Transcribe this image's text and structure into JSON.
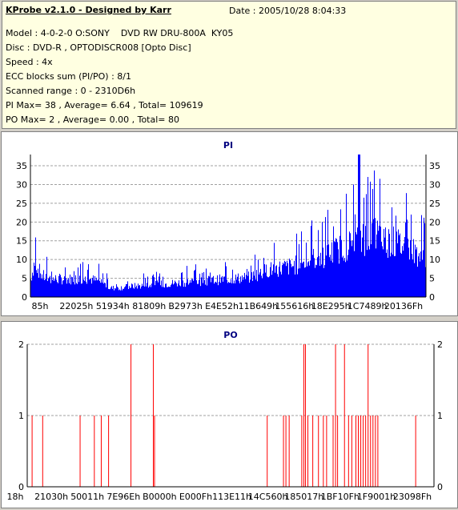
{
  "info": {
    "title": "KProbe v2.1.0 - Designed by Karr",
    "date": "Date : 2005/10/28 8:04:33",
    "model": "Model : 4-0-2-0 O:SONY    DVD RW DRU-800A  KY05",
    "disc": "Disc : DVD-R , OPTODISCR008 [Opto Disc]",
    "speed": "Speed : 4x",
    "ecc": "ECC blocks sum (PI/PO) : 8/1",
    "range": "Scanned range : 0 - 2310D6h",
    "pi_stats": "PI Max= 38 , Average= 6.64 , Total= 109619",
    "po_stats": "PO Max= 2 , Average= 0.00 , Total= 80"
  },
  "colors": {
    "pi_fill": "#0000ff",
    "po_line": "#ff0000",
    "title_text": "#000080",
    "grid": "#a0a0a0"
  },
  "chart_data": [
    {
      "type": "area",
      "title": "PI",
      "ylim": [
        0,
        38
      ],
      "yticks": [
        0,
        5,
        10,
        15,
        20,
        25,
        30,
        35
      ],
      "grid": "dashed horizontal at each tick",
      "x_tick_labels": [
        "85h",
        "22025h",
        "51934h",
        "81809h",
        "B2973h",
        "E4E52h",
        "11B649h",
        "155616h",
        "18E295h",
        "1C7489h",
        "20136Fh"
      ],
      "x_range": [
        "0h",
        "2310D6h"
      ],
      "series": [
        {
          "profile_x_percent": [
            0,
            1,
            2,
            3,
            5,
            10,
            15,
            18,
            20,
            22,
            25,
            30,
            35,
            40,
            45,
            50,
            55,
            58,
            60,
            62,
            65,
            68,
            70,
            72,
            75,
            78,
            80,
            83,
            85,
            87,
            90,
            92,
            95,
            97,
            100
          ],
          "profile_y": [
            6,
            12,
            9,
            7,
            6,
            6,
            6,
            5,
            3,
            3,
            3.5,
            4,
            4.5,
            5,
            5.5,
            6,
            6.5,
            8,
            9,
            9.5,
            10,
            11,
            12,
            13,
            14,
            16,
            17,
            19,
            20,
            21,
            19,
            18,
            17,
            15,
            13
          ],
          "peak_max_percent_x": 83,
          "peak_max": 38
        }
      ]
    },
    {
      "type": "bar",
      "title": "PO",
      "ylim": [
        0,
        2
      ],
      "yticks": [
        0,
        1,
        2
      ],
      "grid": "dashed horizontal at 1",
      "x_tick_labels": [
        "18h",
        "21030h",
        "50011h",
        "7E96Eh",
        "B0000h",
        "E000Fh",
        "113E11h",
        "14C560h",
        "185017h",
        "1BF10Fh",
        "1F9001h",
        "23098Fh"
      ],
      "x_range": [
        "0h",
        "2310D6h"
      ],
      "spikes": [
        {
          "x_percent": 1.2,
          "value": 1
        },
        {
          "x_percent": 3.8,
          "value": 1
        },
        {
          "x_percent": 13.0,
          "value": 1
        },
        {
          "x_percent": 16.5,
          "value": 1
        },
        {
          "x_percent": 18.2,
          "value": 1
        },
        {
          "x_percent": 20.0,
          "value": 1
        },
        {
          "x_percent": 25.5,
          "value": 2
        },
        {
          "x_percent": 31.0,
          "value": 2
        },
        {
          "x_percent": 31.3,
          "value": 1
        },
        {
          "x_percent": 59.0,
          "value": 1
        },
        {
          "x_percent": 63.0,
          "value": 1
        },
        {
          "x_percent": 63.6,
          "value": 1
        },
        {
          "x_percent": 64.4,
          "value": 1
        },
        {
          "x_percent": 67.5,
          "value": 1
        },
        {
          "x_percent": 68.0,
          "value": 2
        },
        {
          "x_percent": 68.4,
          "value": 2
        },
        {
          "x_percent": 69.0,
          "value": 1
        },
        {
          "x_percent": 70.2,
          "value": 1
        },
        {
          "x_percent": 71.6,
          "value": 1
        },
        {
          "x_percent": 72.8,
          "value": 1
        },
        {
          "x_percent": 73.6,
          "value": 1
        },
        {
          "x_percent": 75.2,
          "value": 1
        },
        {
          "x_percent": 75.8,
          "value": 2
        },
        {
          "x_percent": 76.3,
          "value": 1
        },
        {
          "x_percent": 78.0,
          "value": 2
        },
        {
          "x_percent": 79.0,
          "value": 1
        },
        {
          "x_percent": 79.8,
          "value": 1
        },
        {
          "x_percent": 80.8,
          "value": 1
        },
        {
          "x_percent": 81.4,
          "value": 1
        },
        {
          "x_percent": 82.0,
          "value": 1
        },
        {
          "x_percent": 82.6,
          "value": 1
        },
        {
          "x_percent": 83.2,
          "value": 1
        },
        {
          "x_percent": 83.8,
          "value": 2
        },
        {
          "x_percent": 84.4,
          "value": 1
        },
        {
          "x_percent": 85.0,
          "value": 1
        },
        {
          "x_percent": 85.6,
          "value": 1
        },
        {
          "x_percent": 86.2,
          "value": 1
        },
        {
          "x_percent": 95.5,
          "value": 1
        }
      ]
    }
  ]
}
